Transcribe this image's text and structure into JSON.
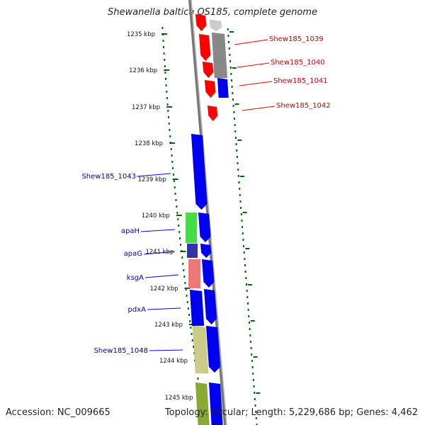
{
  "title": "Shewanella baltica OS185, complete genome",
  "footer": {
    "accession": "Accession: NC_009665",
    "topology": "Topology: circular; Length: 5,229,686 bp; Genes: 4,462"
  },
  "colors": {
    "red": "#ff0000",
    "blue": "#0000ee",
    "gray": "#888888",
    "light_gray": "#cccccc",
    "green": "#44dd44",
    "navy": "#3333aa",
    "pink": "#ee7777",
    "khaki": "#cccc88",
    "olive": "#88aa33",
    "label_red": "#cc0000",
    "label_blue": "#0000aa",
    "tick_green": "#006600"
  },
  "ticks": [
    "1235 kbp",
    "1236 kbp",
    "1237 kbp",
    "1238 kbp",
    "1239 kbp",
    "1240 kbp",
    "1241 kbp",
    "1242 kbp",
    "1243 kbp",
    "1244 kbp",
    "1245 kbp"
  ],
  "labels_right": [
    "Shew185_1039",
    "Shew185_1040",
    "Shew185_1041",
    "Shew185_1042"
  ],
  "labels_left": [
    "Shew185_1043",
    "apaH",
    "apaG",
    "ksgA",
    "pdxA",
    "Shew185_1048"
  ]
}
